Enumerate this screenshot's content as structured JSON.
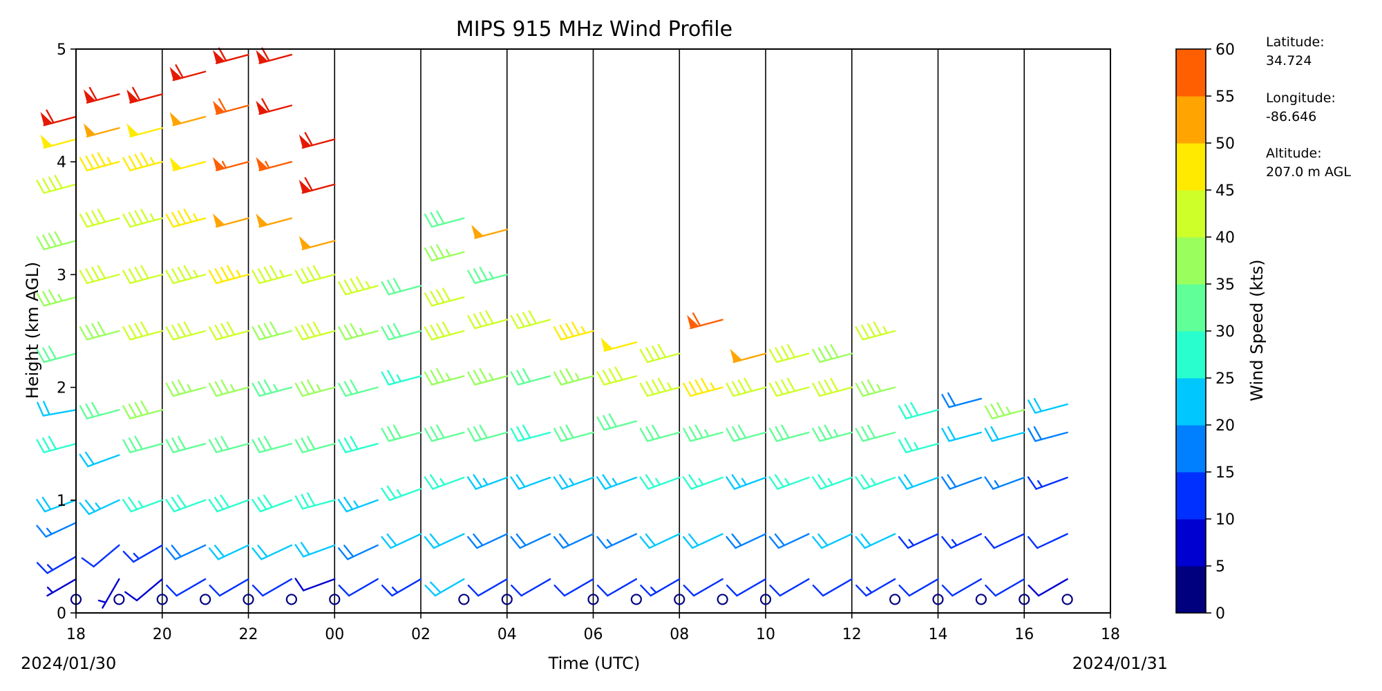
{
  "chart_data": {
    "type": "wind-barbs",
    "title": "MIPS 915 MHz Wind Profile",
    "xlabel": "Time (UTC)",
    "ylabel": "Height (km AGL)",
    "start_date": "2024/01/30",
    "end_date": "2024/01/31",
    "x_tick_labels": [
      "18",
      "20",
      "22",
      "00",
      "02",
      "04",
      "06",
      "08",
      "10",
      "12",
      "14",
      "16",
      "18"
    ],
    "xlim_hours": [
      0,
      24
    ],
    "ylim": [
      0,
      5
    ],
    "y_ticks": [
      0,
      1,
      2,
      3,
      4,
      5
    ],
    "colorbar": {
      "label": "Wind Speed (kts)",
      "ticks": [
        0,
        5,
        10,
        15,
        20,
        25,
        30,
        35,
        40,
        45,
        50,
        55,
        60
      ],
      "colors": [
        "#00007f",
        "#0000d0",
        "#0030ff",
        "#0080ff",
        "#00c8ff",
        "#29ffce",
        "#60ff97",
        "#9aff5d",
        "#ceff29",
        "#ffea00",
        "#ffa400",
        "#ff5f00",
        "#e41900",
        "#7f0000"
      ]
    },
    "station": {
      "latitude_label": "Latitude:",
      "latitude": "34.724",
      "longitude_label": "Longitude:",
      "longitude": "-86.646",
      "altitude_label": "Altitude:",
      "altitude": "207.0 m AGL"
    },
    "grid": "vertical lines every 2 h",
    "profiles": [
      {
        "time_h": 0,
        "levels": [
          [
            0.3,
            7,
            240
          ],
          [
            0.5,
            14,
            240
          ],
          [
            0.8,
            17,
            245
          ],
          [
            1.0,
            22,
            250
          ],
          [
            1.5,
            28,
            255
          ],
          [
            1.8,
            20,
            260
          ],
          [
            2.3,
            30,
            255
          ],
          [
            2.8,
            36,
            255
          ],
          [
            3.3,
            38,
            255
          ],
          [
            3.8,
            42,
            255
          ],
          [
            4.2,
            48,
            255
          ],
          [
            4.4,
            62,
            255
          ]
        ]
      },
      {
        "time_h": 1,
        "levels": [
          [
            0.3,
            6,
            210
          ],
          [
            0.6,
            12,
            230
          ],
          [
            1.0,
            24,
            245
          ],
          [
            1.4,
            20,
            250
          ],
          [
            1.8,
            32,
            255
          ],
          [
            2.5,
            38,
            255
          ],
          [
            3.0,
            40,
            255
          ],
          [
            3.5,
            42,
            255
          ],
          [
            4.0,
            45,
            255
          ],
          [
            4.3,
            52,
            255
          ],
          [
            4.6,
            62,
            255
          ]
        ]
      },
      {
        "time_h": 2,
        "levels": [
          [
            0.3,
            8,
            230
          ],
          [
            0.6,
            14,
            240
          ],
          [
            1.0,
            26,
            250
          ],
          [
            1.5,
            32,
            255
          ],
          [
            1.8,
            38,
            255
          ],
          [
            2.5,
            40,
            255
          ],
          [
            3.0,
            42,
            255
          ],
          [
            3.5,
            43,
            255
          ],
          [
            4.0,
            45,
            255
          ],
          [
            4.3,
            48,
            255
          ],
          [
            4.6,
            62,
            255
          ]
        ]
      },
      {
        "time_h": 3,
        "levels": [
          [
            0.3,
            10,
            240
          ],
          [
            0.6,
            18,
            245
          ],
          [
            1.0,
            28,
            250
          ],
          [
            1.5,
            32,
            255
          ],
          [
            2.0,
            36,
            255
          ],
          [
            2.5,
            40,
            255
          ],
          [
            3.0,
            44,
            255
          ],
          [
            3.5,
            46,
            255
          ],
          [
            4.0,
            48,
            255
          ],
          [
            4.4,
            52,
            255
          ],
          [
            4.8,
            62,
            255
          ]
        ]
      },
      {
        "time_h": 4,
        "levels": [
          [
            0.3,
            12,
            240
          ],
          [
            0.6,
            20,
            245
          ],
          [
            1.0,
            28,
            250
          ],
          [
            1.5,
            30,
            255
          ],
          [
            2.0,
            36,
            255
          ],
          [
            2.5,
            40,
            255
          ],
          [
            3.0,
            45,
            255
          ],
          [
            3.5,
            50,
            255
          ],
          [
            4.0,
            56,
            255
          ],
          [
            4.5,
            58,
            255
          ],
          [
            4.95,
            62,
            255
          ]
        ]
      },
      {
        "time_h": 5,
        "levels": [
          [
            0.3,
            10,
            240
          ],
          [
            0.6,
            20,
            245
          ],
          [
            1.0,
            28,
            250
          ],
          [
            1.5,
            30,
            255
          ],
          [
            2.0,
            34,
            255
          ],
          [
            2.5,
            38,
            255
          ],
          [
            3.0,
            44,
            255
          ],
          [
            3.5,
            52,
            255
          ],
          [
            4.0,
            56,
            255
          ],
          [
            4.5,
            62,
            255
          ],
          [
            4.95,
            62,
            255
          ]
        ]
      },
      {
        "time_h": 6,
        "levels": [
          [
            0.3,
            8,
            250
          ],
          [
            0.6,
            20,
            250
          ],
          [
            1.0,
            28,
            255
          ],
          [
            1.5,
            32,
            255
          ],
          [
            2.0,
            36,
            255
          ],
          [
            2.5,
            40,
            255
          ],
          [
            3.0,
            42,
            255
          ],
          [
            3.3,
            52,
            255
          ],
          [
            3.8,
            62,
            255
          ],
          [
            4.2,
            62,
            255
          ]
        ]
      },
      {
        "time_h": 7,
        "levels": [
          [
            0.3,
            12,
            240
          ],
          [
            0.6,
            18,
            245
          ],
          [
            1.0,
            24,
            250
          ],
          [
            1.5,
            28,
            255
          ],
          [
            2.0,
            32,
            255
          ],
          [
            2.5,
            36,
            255
          ],
          [
            2.9,
            44,
            255
          ]
        ]
      },
      {
        "time_h": 8,
        "levels": [
          [
            0.3,
            14,
            240
          ],
          [
            0.7,
            22,
            245
          ],
          [
            1.1,
            26,
            250
          ],
          [
            1.6,
            30,
            255
          ],
          [
            2.1,
            26,
            255
          ],
          [
            2.5,
            32,
            255
          ],
          [
            2.9,
            30,
            255
          ]
        ]
      },
      {
        "time_h": 9,
        "levels": [
          [
            0.3,
            20,
            240
          ],
          [
            0.7,
            22,
            245
          ],
          [
            1.2,
            26,
            250
          ],
          [
            1.6,
            30,
            255
          ],
          [
            2.1,
            36,
            255
          ],
          [
            2.5,
            42,
            255
          ],
          [
            2.8,
            40,
            255
          ],
          [
            3.2,
            36,
            255
          ],
          [
            3.5,
            30,
            255
          ]
        ]
      },
      {
        "time_h": 10,
        "levels": [
          [
            0.3,
            12,
            240
          ],
          [
            0.7,
            18,
            245
          ],
          [
            1.2,
            24,
            250
          ],
          [
            1.6,
            30,
            255
          ],
          [
            2.1,
            36,
            255
          ],
          [
            2.6,
            40,
            255
          ],
          [
            3.0,
            34,
            255
          ],
          [
            3.4,
            50,
            255
          ]
        ]
      },
      {
        "time_h": 11,
        "levels": [
          [
            0.3,
            10,
            240
          ],
          [
            0.7,
            18,
            245
          ],
          [
            1.2,
            22,
            250
          ],
          [
            1.6,
            28,
            255
          ],
          [
            2.1,
            32,
            255
          ],
          [
            2.6,
            40,
            255
          ]
        ]
      },
      {
        "time_h": 12,
        "levels": [
          [
            0.3,
            10,
            240
          ],
          [
            0.7,
            18,
            245
          ],
          [
            1.2,
            24,
            250
          ],
          [
            1.6,
            30,
            255
          ],
          [
            2.1,
            36,
            255
          ],
          [
            2.5,
            46,
            255
          ]
        ]
      },
      {
        "time_h": 13,
        "levels": [
          [
            0.3,
            12,
            240
          ],
          [
            0.7,
            16,
            245
          ],
          [
            1.2,
            24,
            250
          ],
          [
            1.7,
            32,
            255
          ],
          [
            2.1,
            40,
            255
          ],
          [
            2.4,
            48,
            255
          ]
        ]
      },
      {
        "time_h": 14,
        "levels": [
          [
            0.3,
            14,
            240
          ],
          [
            0.7,
            20,
            245
          ],
          [
            1.2,
            26,
            250
          ],
          [
            1.6,
            32,
            255
          ],
          [
            2.0,
            44,
            255
          ],
          [
            2.3,
            40,
            255
          ]
        ]
      },
      {
        "time_h": 15,
        "levels": [
          [
            0.3,
            12,
            240
          ],
          [
            0.7,
            20,
            245
          ],
          [
            1.2,
            26,
            250
          ],
          [
            1.6,
            34,
            255
          ],
          [
            2.0,
            46,
            255
          ],
          [
            2.6,
            58,
            255
          ]
        ]
      },
      {
        "time_h": 16,
        "levels": [
          [
            0.3,
            12,
            240
          ],
          [
            0.7,
            18,
            245
          ],
          [
            1.2,
            24,
            250
          ],
          [
            1.6,
            32,
            255
          ],
          [
            2.0,
            40,
            255
          ],
          [
            2.3,
            52,
            255
          ]
        ]
      },
      {
        "time_h": 17,
        "levels": [
          [
            0.3,
            10,
            240
          ],
          [
            0.7,
            18,
            245
          ],
          [
            1.2,
            26,
            250
          ],
          [
            1.6,
            32,
            255
          ],
          [
            2.0,
            40,
            255
          ],
          [
            2.3,
            40,
            255
          ]
        ]
      },
      {
        "time_h": 18,
        "levels": [
          [
            0.3,
            12,
            240
          ],
          [
            0.7,
            20,
            245
          ],
          [
            1.2,
            26,
            250
          ],
          [
            1.6,
            34,
            255
          ],
          [
            2.0,
            40,
            255
          ],
          [
            2.3,
            38,
            255
          ]
        ]
      },
      {
        "time_h": 19,
        "levels": [
          [
            0.3,
            14,
            240
          ],
          [
            0.7,
            20,
            245
          ],
          [
            1.2,
            26,
            250
          ],
          [
            1.6,
            30,
            255
          ],
          [
            2.0,
            36,
            255
          ],
          [
            2.5,
            44,
            255
          ]
        ]
      },
      {
        "time_h": 20,
        "levels": [
          [
            0.3,
            10,
            240
          ],
          [
            0.7,
            14,
            245
          ],
          [
            1.2,
            22,
            250
          ],
          [
            1.5,
            26,
            255
          ],
          [
            1.8,
            28,
            255
          ]
        ]
      },
      {
        "time_h": 21,
        "levels": [
          [
            0.3,
            10,
            240
          ],
          [
            0.7,
            14,
            245
          ],
          [
            1.2,
            18,
            250
          ],
          [
            1.6,
            20,
            255
          ],
          [
            1.9,
            18,
            255
          ]
        ]
      },
      {
        "time_h": 22,
        "levels": [
          [
            0.3,
            10,
            240
          ],
          [
            0.7,
            12,
            245
          ],
          [
            1.2,
            16,
            250
          ],
          [
            1.6,
            22,
            255
          ],
          [
            1.8,
            36,
            255
          ]
        ]
      },
      {
        "time_h": 23,
        "levels": [
          [
            0.3,
            8,
            240
          ],
          [
            0.7,
            10,
            245
          ],
          [
            1.2,
            14,
            250
          ],
          [
            1.6,
            18,
            255
          ],
          [
            1.85,
            20,
            255
          ]
        ]
      }
    ],
    "calm_markers_h": [
      0,
      1,
      2,
      3,
      4,
      5,
      6,
      9,
      10,
      12,
      13,
      14,
      15,
      16,
      19,
      20,
      21,
      22,
      23
    ]
  }
}
